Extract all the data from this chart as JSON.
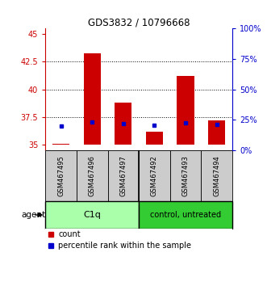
{
  "title": "GDS3832 / 10796668",
  "samples": [
    "GSM467495",
    "GSM467496",
    "GSM467497",
    "GSM467492",
    "GSM467493",
    "GSM467494"
  ],
  "count_values": [
    35.1,
    43.3,
    38.8,
    36.2,
    41.2,
    37.2
  ],
  "count_base": 35.0,
  "percentile_values": [
    20.0,
    23.0,
    22.0,
    20.5,
    22.5,
    21.5
  ],
  "ylim_left": [
    34.5,
    45.5
  ],
  "ylim_right": [
    0,
    100
  ],
  "yticks_left": [
    35,
    37.5,
    40,
    42.5,
    45
  ],
  "yticks_right": [
    0,
    25,
    50,
    75,
    100
  ],
  "ytick_labels_left": [
    "35",
    "37.5",
    "40",
    "42.5",
    "45"
  ],
  "ytick_labels_right": [
    "0%",
    "25%",
    "50%",
    "75%",
    "100%"
  ],
  "bar_color": "#CC0000",
  "dot_color": "#0000CC",
  "bg_color": "#FFFFFF",
  "sample_bg_color": "#CCCCCC",
  "c1q_bg": "#AAFFAA",
  "control_bg": "#33CC33",
  "left_tick_color": "#CC0000",
  "right_tick_color": "#0000CC",
  "bar_width": 0.55,
  "grid_yticks": [
    37.5,
    40,
    42.5
  ]
}
